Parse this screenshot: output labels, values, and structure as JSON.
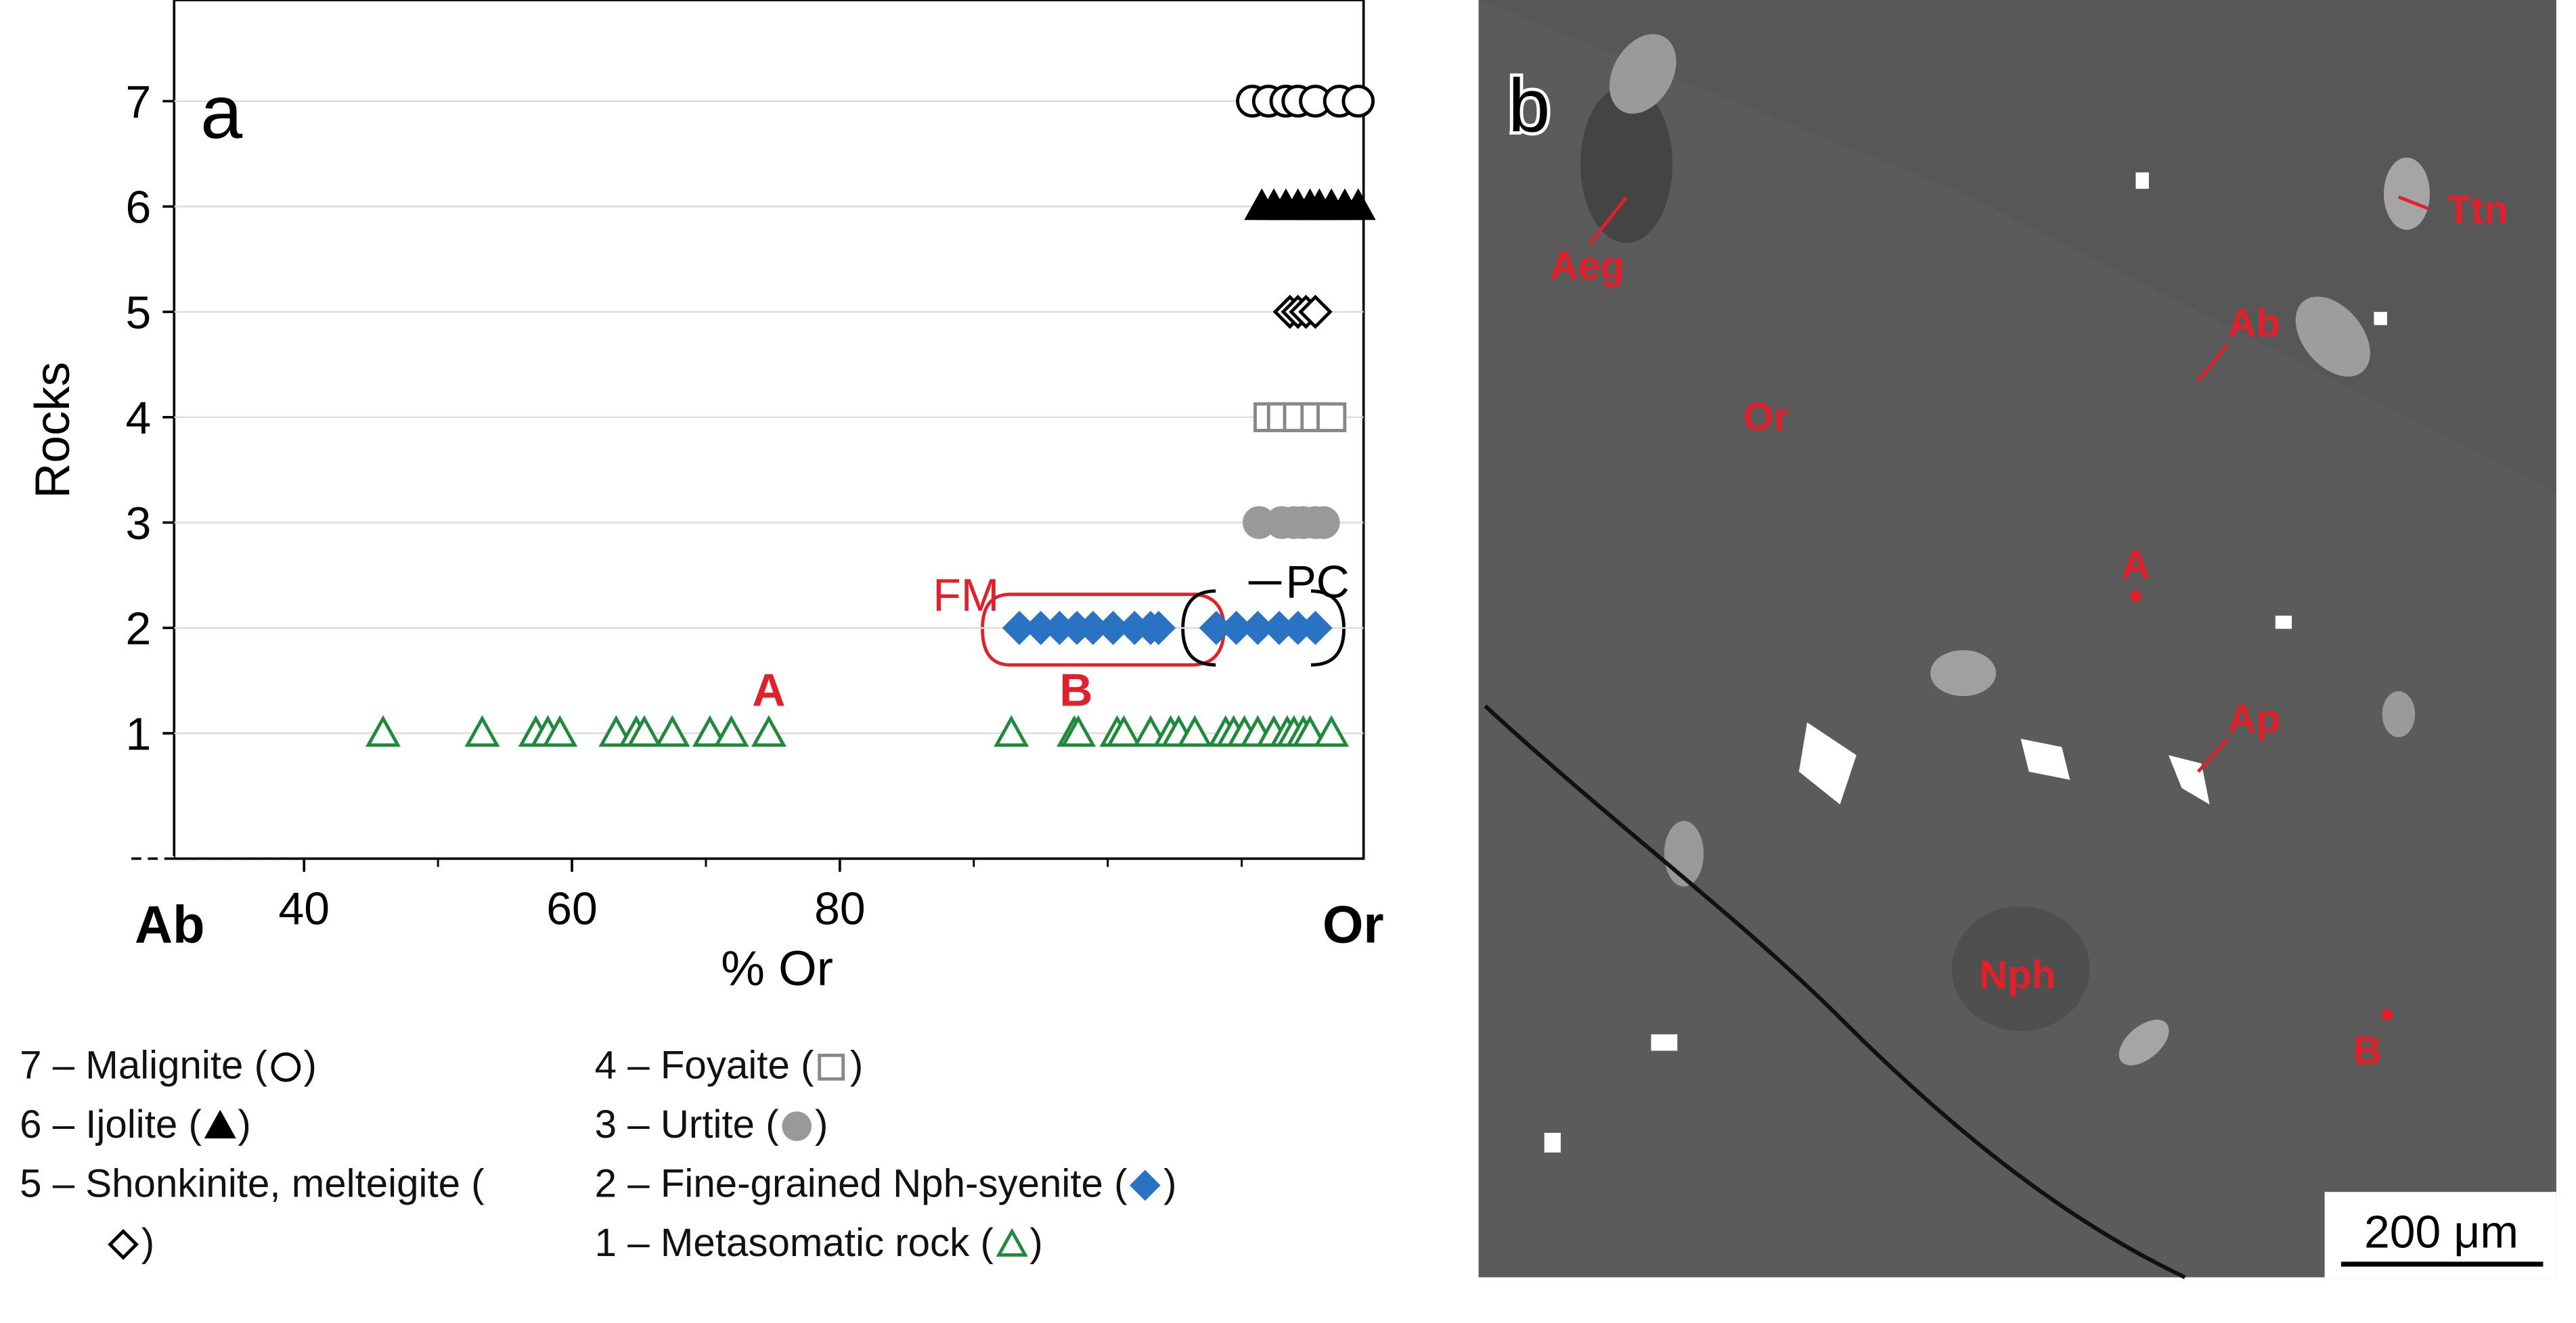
{
  "chart_data": {
    "type": "scatter",
    "panel_label": "a",
    "xlabel": "% Or",
    "ylabel": "Rocks",
    "x_left_label": "Ab",
    "x_right_label": "Or",
    "xlim": [
      30.3,
      119.1
    ],
    "xticks": [
      40,
      60,
      80
    ],
    "xminorticks": [
      50,
      70,
      90,
      100,
      110
    ],
    "ylim": [
      -0.19,
      7.96
    ],
    "yticks": [
      1,
      2,
      3,
      4,
      5,
      6,
      7
    ],
    "grid": true,
    "legend_brackets": [
      "(",
      ")"
    ],
    "series": [
      {
        "name": "7 – Malignite",
        "color": "#000000",
        "marker": "circle-open",
        "y": 7,
        "x": [
          110.8,
          112,
          113.3,
          114.2,
          115.5,
          117.3,
          118.7
        ]
      },
      {
        "name": "6 – Ijolite",
        "color": "#000000",
        "marker": "triangle-filled",
        "y": 6,
        "x": [
          111.5,
          112.4,
          113.3,
          114.2,
          115.1,
          115.8,
          116.7,
          117.7,
          118.7
        ]
      },
      {
        "name": "5 – Shonkinite, melteigite",
        "color": "#000000",
        "marker": "diamond-open",
        "y": 5,
        "x": [
          113.6,
          114.2,
          114.8,
          115.5
        ]
      },
      {
        "name": "4 – Foyaite",
        "color": "#888888",
        "marker": "square-open",
        "y": 4,
        "x": [
          112,
          113,
          114.2,
          115.5,
          116.7
        ]
      },
      {
        "name": "3 – Urtite",
        "color": "#999999",
        "marker": "circle-filled",
        "y": 3,
        "x": [
          111.3,
          113,
          113.9,
          114.6,
          115.5,
          116.1
        ]
      },
      {
        "name": "2 – Fine-grained Nph-syenite",
        "color": "#2a72c4",
        "marker": "diamond-filled",
        "y": 2,
        "x": [
          93.4,
          95,
          96.4,
          97.7,
          98.9,
          100.4,
          102,
          103.2,
          103.8,
          108.1,
          109.6,
          111.2,
          112.8,
          114.2,
          115.5
        ]
      },
      {
        "name": "1 – Metasomatic rock",
        "color": "#1e8a3a",
        "marker": "triangle-open",
        "y": 1,
        "x": [
          45.9,
          53.3,
          57.3,
          58.2,
          59.1,
          63.3,
          64.8,
          65.4,
          67.5,
          70.3,
          71.9,
          74.7,
          92.8,
          97.5,
          97.8,
          100.7,
          101.2,
          103.2,
          104.7,
          105.3,
          106.5,
          108.8,
          109.4,
          110.2,
          111.2,
          112.4,
          113.4,
          113.9,
          114.6,
          115.1,
          116.7
        ]
      }
    ],
    "annotations": [
      "A",
      "B",
      "FM",
      "PC"
    ]
  },
  "image_panel": {
    "panel_label": "b",
    "labels": [
      "Aeg",
      "Ttn",
      "Ab",
      "Or",
      "A",
      "Ap",
      "Nph",
      "B"
    ],
    "scale_bar": "200 μm"
  }
}
